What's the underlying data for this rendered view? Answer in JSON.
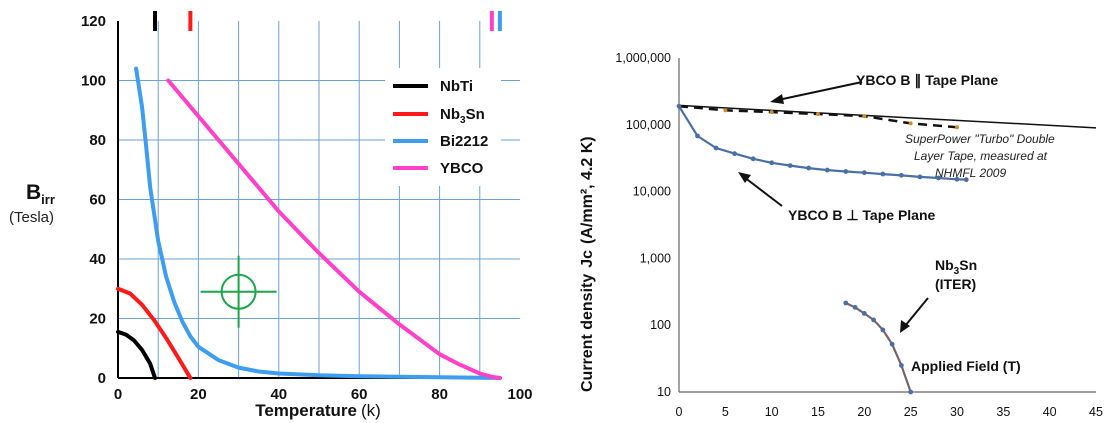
{
  "chart_data": [
    {
      "type": "line",
      "title": "",
      "xlabel": "Temperature",
      "xlabel_unit": "(k)",
      "ylabel": "B",
      "ylabel_sub": "irr",
      "ylabel_unit": "(Tesla)",
      "xlim": [
        0,
        100
      ],
      "ylim": [
        0,
        120
      ],
      "x_ticks": [
        "0",
        "20",
        "40",
        "60",
        "80",
        "100"
      ],
      "y_ticks": [
        "0",
        "20",
        "40",
        "60",
        "80",
        "100",
        "120"
      ],
      "grid": true,
      "legend_position": "top-right",
      "legend": [
        {
          "label": "NbTi",
          "main": "NbTi",
          "sub": "",
          "tail": "",
          "color": "#000000"
        },
        {
          "label": "Nb3Sn",
          "main": "Nb",
          "sub": "3",
          "tail": "Sn",
          "color": "#ff1a1a"
        },
        {
          "label": "Bi2212",
          "main": "Bi2212",
          "sub": "",
          "tail": "",
          "color": "#3d9df0"
        },
        {
          "label": "YBCO",
          "main": "YBCO",
          "sub": "",
          "tail": "",
          "color": "#ff40c8"
        }
      ],
      "series": [
        {
          "name": "NbTi",
          "color": "#000000",
          "x": [
            0,
            2,
            4,
            6,
            8,
            9.2
          ],
          "y": [
            15.5,
            14.6,
            12.6,
            9.4,
            4.8,
            0
          ]
        },
        {
          "name": "Nb3Sn",
          "color": "#ff1a1a",
          "x": [
            0,
            3,
            6,
            9,
            12,
            15,
            18
          ],
          "y": [
            30,
            28.4,
            24.6,
            19.4,
            13.4,
            6.8,
            0
          ]
        },
        {
          "name": "Bi2212",
          "color": "#3d9df0",
          "x": [
            4.5,
            6,
            7,
            8,
            10,
            12,
            14,
            16,
            18,
            20,
            25,
            30,
            35,
            40,
            50,
            60,
            70,
            80,
            90,
            95
          ],
          "y": [
            104,
            91,
            78,
            64,
            46,
            34,
            25.5,
            19,
            14,
            10.5,
            6,
            3.5,
            2.2,
            1.5,
            0.9,
            0.6,
            0.4,
            0.25,
            0.1,
            0
          ]
        },
        {
          "name": "YBCO",
          "color": "#ff40c8",
          "x": [
            12.5,
            20,
            30,
            40,
            50,
            60,
            70,
            80,
            85,
            90,
            93,
            95
          ],
          "y": [
            100,
            88,
            72,
            56,
            42,
            29,
            18,
            8,
            4.5,
            1.5,
            0.4,
            0
          ]
        }
      ],
      "top_markers": [
        {
          "x": 9.2,
          "color": "#000000"
        },
        {
          "x": 18,
          "color": "#ff1a1a"
        },
        {
          "x": 93,
          "color": "#ff40c8"
        },
        {
          "x": 95,
          "color": "#3d9df0"
        }
      ],
      "crosshair": {
        "x": 30,
        "y": 29,
        "color": "#1aa64a"
      }
    },
    {
      "type": "line",
      "title": "",
      "xlabel": "",
      "ylabel": "Current density",
      "ylabel_var": "Jc",
      "ylabel_unit": "(A/mm², 4.2 K)",
      "y_scale": "log",
      "xlim": [
        0,
        45
      ],
      "ylim": [
        10,
        1000000
      ],
      "x_ticks": [
        "0",
        "5",
        "10",
        "15",
        "20",
        "25",
        "30",
        "35",
        "40",
        "45"
      ],
      "y_ticks": [
        "10",
        "100",
        "1,000",
        "10,000",
        "100,000",
        "1,000,000"
      ],
      "grid": false,
      "series": [
        {
          "name": "YBCO B ⊥ Tape Plane",
          "color": "#4a6fa5",
          "x": [
            0,
            2,
            4,
            6,
            8,
            10,
            12,
            14,
            16,
            18,
            20,
            22,
            24,
            26,
            28,
            30,
            31
          ],
          "y": [
            190000,
            68000,
            45000,
            37000,
            31000,
            27000,
            24500,
            22500,
            21000,
            20000,
            19200,
            18300,
            17500,
            16600,
            16000,
            15300,
            15100
          ]
        },
        {
          "name": "Nb3Sn (ITER)",
          "color": "#4a6fa5",
          "x": [
            18,
            19,
            20,
            21,
            22,
            23,
            24,
            25
          ],
          "y": [
            215,
            185,
            150,
            120,
            85,
            52,
            25,
            10
          ]
        }
      ],
      "measured_series": {
        "name": "SuperPower \"Turbo\" Double Layer Tape, measured at NHMFL 2009",
        "x": [
          0,
          5,
          10,
          15,
          20,
          25,
          30
        ],
        "y": [
          190000,
          165000,
          155000,
          145000,
          135000,
          105000,
          92000
        ]
      },
      "trend_line": {
        "x": [
          0,
          45
        ],
        "y": [
          195000,
          90000
        ]
      },
      "annotations": [
        {
          "text": "YBCO B ∥ Tape Plane"
        },
        {
          "text": "SuperPower \"Turbo\" Double"
        },
        {
          "text": "Layer Tape, measured at"
        },
        {
          "text": "NHMFL 2009"
        },
        {
          "text": "YBCO B ⊥ Tape Plane"
        },
        {
          "text": "Nb",
          "sub": "3",
          "tail": "Sn"
        },
        {
          "text": "(ITER)"
        },
        {
          "text": "Applied Field (T)"
        }
      ]
    }
  ]
}
